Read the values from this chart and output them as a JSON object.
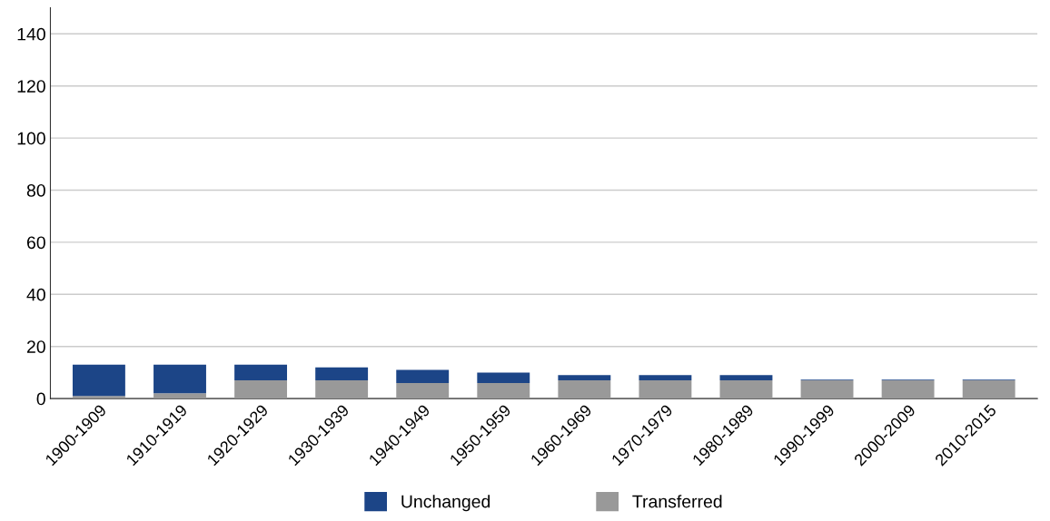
{
  "chart_data": {
    "type": "bar",
    "stacked": true,
    "categories": [
      "1900-1909",
      "1910-1919",
      "1920-1929",
      "1930-1939",
      "1940-1949",
      "1950-1959",
      "1960-1969",
      "1970-1979",
      "1980-1989",
      "1990-1999",
      "2000-2009",
      "2010-2015"
    ],
    "series": [
      {
        "name": "Transferred",
        "color": "#999999",
        "values": [
          1,
          2,
          7,
          7,
          6,
          6,
          7,
          7,
          7,
          7,
          7,
          7
        ]
      },
      {
        "name": "Unchanged",
        "color": "#1c4587",
        "values": [
          12,
          11,
          6,
          5,
          5,
          4,
          2,
          2,
          2,
          0.3,
          0.3,
          0.3
        ]
      }
    ],
    "ylim": [
      0,
      150
    ],
    "yticks": [
      0,
      20,
      40,
      60,
      80,
      100,
      120,
      140
    ],
    "grid": "y",
    "legend": "bottom"
  }
}
